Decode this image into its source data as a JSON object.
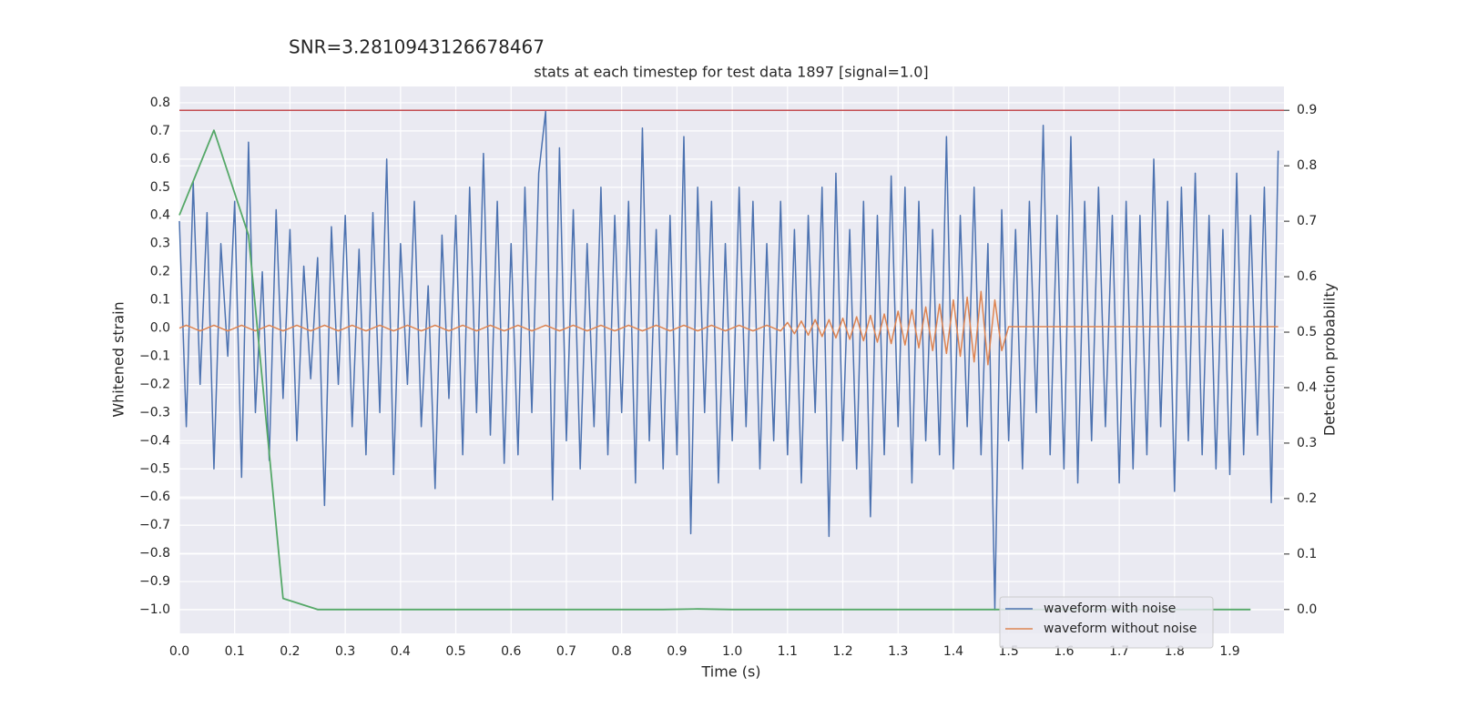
{
  "chart_data": {
    "type": "line",
    "suptitle": "SNR=3.2810943126678467",
    "title": "stats at each timestep for test data 1897 [signal=1.0]",
    "xlabel": "Time (s)",
    "ylabel": "Whitened strain",
    "y2label": "Detection probability",
    "xlim": [
      0,
      1.998
    ],
    "ylim": [
      -1.084,
      0.858
    ],
    "y2lim": [
      -0.043,
      0.943
    ],
    "xticks": [
      {
        "value": 0,
        "label": "0.0"
      },
      0.1,
      0.2,
      0.3,
      0.4,
      0.5,
      0.6,
      0.7,
      0.8,
      0.9,
      {
        "value": 1,
        "label": "1.0"
      },
      1.1,
      1.2,
      1.3,
      1.4,
      1.5,
      1.6,
      1.7,
      1.8,
      1.9
    ],
    "yticks": [
      {
        "value": -1,
        "label": "−1.0"
      },
      {
        "value": -0.9,
        "label": "−0.9"
      },
      {
        "value": -0.8,
        "label": "−0.8"
      },
      {
        "value": -0.7,
        "label": "−0.7"
      },
      {
        "value": -0.6,
        "label": "−0.6"
      },
      {
        "value": -0.5,
        "label": "−0.5"
      },
      {
        "value": -0.4,
        "label": "−0.4"
      },
      {
        "value": -0.3,
        "label": "−0.3"
      },
      {
        "value": -0.2,
        "label": "−0.2"
      },
      {
        "value": -0.1,
        "label": "−0.1"
      },
      {
        "value": 0,
        "label": "0.0"
      },
      0.1,
      0.2,
      0.3,
      0.4,
      0.5,
      0.6,
      0.7,
      0.8
    ],
    "y2ticks": [
      {
        "value": 0,
        "label": "0.0"
      },
      0.1,
      0.2,
      0.3,
      0.4,
      0.5,
      0.6,
      0.7,
      0.8,
      0.9
    ],
    "grid": true,
    "legend": "lower right",
    "x": [
      0,
      0.0125,
      0.025,
      0.0375,
      0.05,
      0.0625,
      0.075,
      0.0875,
      0.1,
      0.1125,
      0.125,
      0.1375,
      0.15,
      0.1625,
      0.175,
      0.1875,
      0.2,
      0.2125,
      0.225,
      0.2375,
      0.25,
      0.2625,
      0.275,
      0.2875,
      0.3,
      0.3125,
      0.325,
      0.3375,
      0.35,
      0.3625,
      0.375,
      0.3875,
      0.4,
      0.4125,
      0.425,
      0.4375,
      0.45,
      0.4625,
      0.475,
      0.4875,
      0.5,
      0.5125,
      0.525,
      0.5375,
      0.55,
      0.5625,
      0.575,
      0.5875,
      0.6,
      0.6125,
      0.625,
      0.6375,
      0.65,
      0.6625,
      0.675,
      0.6875,
      0.7,
      0.7125,
      0.725,
      0.7375,
      0.75,
      0.7625,
      0.775,
      0.7875,
      0.8,
      0.8125,
      0.825,
      0.8375,
      0.85,
      0.8625,
      0.875,
      0.8875,
      0.9,
      0.9125,
      0.925,
      0.9375,
      0.95,
      0.9625,
      0.975,
      0.9875,
      1,
      1.0125,
      1.025,
      1.0375,
      1.05,
      1.0625,
      1.075,
      1.0875,
      1.1,
      1.1125,
      1.125,
      1.1375,
      1.15,
      1.1625,
      1.175,
      1.1875,
      1.2,
      1.2125,
      1.225,
      1.2375,
      1.25,
      1.2625,
      1.275,
      1.2875,
      1.3,
      1.3125,
      1.325,
      1.3375,
      1.35,
      1.3625,
      1.375,
      1.3875,
      1.4,
      1.4125,
      1.425,
      1.4375,
      1.45,
      1.4625,
      1.475,
      1.4875,
      1.5,
      1.5125,
      1.525,
      1.5375,
      1.55,
      1.5625,
      1.575,
      1.5875,
      1.6,
      1.6125,
      1.625,
      1.6375,
      1.65,
      1.6625,
      1.675,
      1.6875,
      1.7,
      1.7125,
      1.725,
      1.7375,
      1.75,
      1.7625,
      1.775,
      1.7875,
      1.8,
      1.8125,
      1.825,
      1.8375,
      1.85,
      1.8625,
      1.875,
      1.8875,
      1.9,
      1.9125,
      1.925,
      1.9375,
      1.95,
      1.9625,
      1.975,
      1.9875
    ],
    "series": [
      {
        "name": "waveform with noise",
        "color": "#4c72b0",
        "values": [
          0.38,
          -0.35,
          0.52,
          -0.2,
          0.41,
          -0.5,
          0.3,
          -0.1,
          0.45,
          -0.53,
          0.66,
          -0.3,
          0.2,
          -0.47,
          0.42,
          -0.25,
          0.35,
          -0.4,
          0.22,
          -0.18,
          0.25,
          -0.63,
          0.36,
          -0.2,
          0.4,
          -0.35,
          0.28,
          -0.45,
          0.41,
          -0.3,
          0.6,
          -0.52,
          0.3,
          -0.2,
          0.45,
          -0.35,
          0.15,
          -0.57,
          0.33,
          -0.25,
          0.4,
          -0.45,
          0.5,
          -0.3,
          0.62,
          -0.38,
          0.45,
          -0.48,
          0.3,
          -0.45,
          0.5,
          -0.3,
          0.55,
          0.77,
          -0.61,
          0.64,
          -0.4,
          0.42,
          -0.5,
          0.3,
          -0.35,
          0.5,
          -0.45,
          0.4,
          -0.3,
          0.45,
          -0.55,
          0.71,
          -0.4,
          0.35,
          -0.5,
          0.4,
          -0.45,
          0.68,
          -0.73,
          0.5,
          -0.3,
          0.45,
          -0.55,
          0.3,
          -0.4,
          0.5,
          -0.35,
          0.45,
          -0.5,
          0.3,
          -0.4,
          0.45,
          -0.45,
          0.35,
          -0.55,
          0.4,
          -0.3,
          0.5,
          -0.74,
          0.55,
          -0.4,
          0.35,
          -0.5,
          0.45,
          -0.67,
          0.4,
          -0.45,
          0.54,
          -0.35,
          0.5,
          -0.55,
          0.45,
          -0.4,
          0.35,
          -0.45,
          0.68,
          -0.5,
          0.4,
          -0.35,
          0.5,
          -0.45,
          0.3,
          -1.0,
          0.42,
          -0.4,
          0.35,
          -0.5,
          0.45,
          -0.3,
          0.72,
          -0.45,
          0.4,
          -0.5,
          0.68,
          -0.55,
          0.45,
          -0.4,
          0.5,
          -0.35,
          0.4,
          -0.55,
          0.45,
          -0.5,
          0.4,
          -0.45,
          0.6,
          -0.35,
          0.45,
          -0.58,
          0.5,
          -0.4,
          0.55,
          -0.45,
          0.4,
          -0.5,
          0.35,
          -0.52,
          0.55,
          -0.45,
          0.4,
          -0.38,
          0.5,
          -0.62,
          0.63
        ]
      },
      {
        "name": "waveform without noise",
        "color": "#dd8452",
        "values": [
          0,
          0.01,
          0,
          -0.01,
          0,
          0.01,
          0,
          -0.01,
          0,
          0.01,
          0,
          -0.01,
          0,
          0.01,
          0,
          -0.01,
          0,
          0.01,
          0,
          -0.01,
          0,
          0.01,
          0,
          -0.01,
          0,
          0.01,
          0,
          -0.01,
          0,
          0.01,
          0,
          -0.01,
          0,
          0.01,
          0,
          -0.01,
          0,
          0.01,
          0,
          -0.01,
          0,
          0.01,
          0,
          -0.01,
          0,
          0.01,
          0,
          -0.01,
          0,
          0.01,
          0,
          -0.01,
          0,
          0.01,
          0,
          -0.01,
          0,
          0.01,
          0,
          -0.01,
          0,
          0.01,
          0,
          -0.01,
          0,
          0.01,
          0,
          -0.01,
          0,
          0.01,
          0,
          -0.01,
          0,
          0.01,
          0,
          -0.01,
          0,
          0.01,
          0,
          -0.01,
          0,
          0.01,
          0,
          -0.01,
          0,
          0.01,
          0,
          -0.01,
          0.02,
          -0.02,
          0.025,
          -0.025,
          0.03,
          -0.03,
          0.03,
          -0.035,
          0.035,
          -0.04,
          0.04,
          -0.045,
          0.045,
          -0.05,
          0.05,
          -0.055,
          0.06,
          -0.06,
          0.065,
          -0.07,
          0.075,
          -0.08,
          0.085,
          -0.09,
          0.1,
          -0.1,
          0.11,
          -0.12,
          0.13,
          -0.13,
          0.1,
          -0.08,
          0.005,
          0.005,
          0.005,
          0.005,
          0.005,
          0.005,
          0.005,
          0.005,
          0.005,
          0.005,
          0.005,
          0.005,
          0.005,
          0.005,
          0.005,
          0.005,
          0.005,
          0.005,
          0.005,
          0.005,
          0.005,
          0.005,
          0.005,
          0.005,
          0.005,
          0.005,
          0.005,
          0.005,
          0.005,
          0.005,
          0.005,
          0.005,
          0.005,
          0.005,
          0.005,
          0.005,
          0.005,
          0.005,
          0.005,
          0.005
        ]
      },
      {
        "axis": "y2",
        "color": "#55a868",
        "x": [
          0,
          0.0625,
          0.125,
          0.1875,
          0.25,
          0.3125,
          0.375,
          0.4375,
          0.5,
          0.5625,
          0.625,
          0.6875,
          0.75,
          0.8125,
          0.875,
          0.9375,
          1,
          1.0625,
          1.125,
          1.1875,
          1.25,
          1.3125,
          1.375,
          1.4375,
          1.5,
          1.5625,
          1.625,
          1.6875,
          1.75,
          1.8125,
          1.875,
          1.9375
        ],
        "values": [
          0.711,
          0.864,
          0.675,
          0.02,
          0,
          0,
          0,
          0,
          0,
          0,
          0,
          0,
          0,
          0,
          0,
          0.001,
          0,
          0,
          0,
          0,
          0,
          0,
          0,
          0,
          0,
          0,
          0,
          0,
          0,
          0,
          0,
          0
        ]
      }
    ],
    "threshold": {
      "value": 0.9,
      "axis": "y2",
      "color": "#c44e52"
    }
  }
}
